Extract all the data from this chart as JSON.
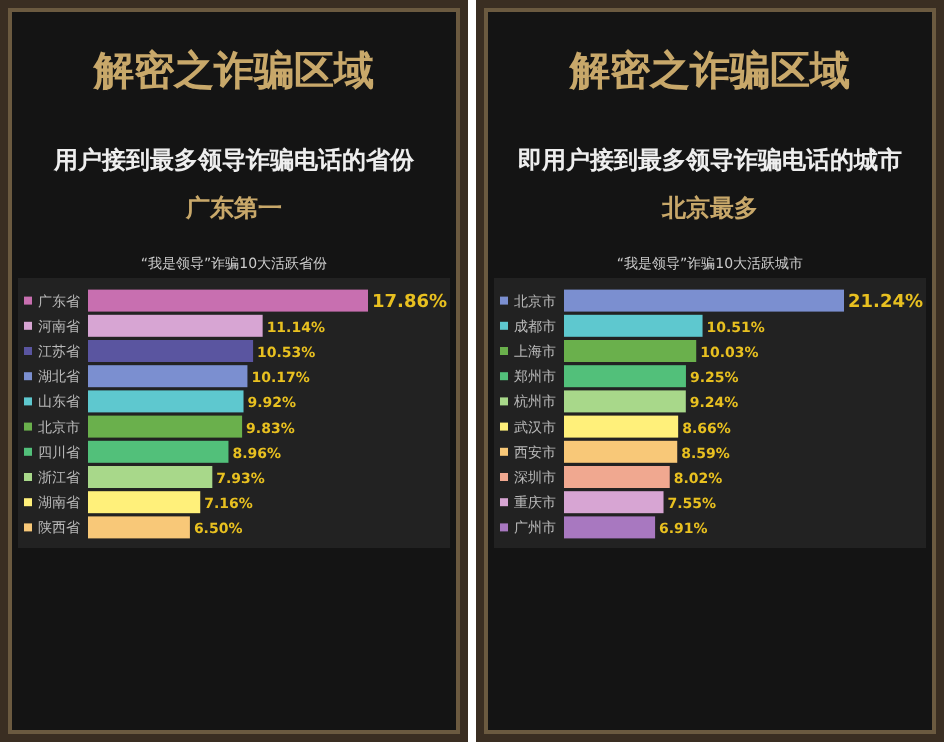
{
  "chart_data": [
    {
      "type": "bar",
      "orientation": "horizontal",
      "tick_labels": "y",
      "title": "解密之诈骗区域",
      "subtitle": "用户接到最多领导诈骗电话的省份",
      "value_labels": [
        "17.86%",
        "11.14%",
        "10.53%",
        "10.17%",
        "9.92%",
        "9.83%",
        "8.96%",
        "7.93%",
        "7.16%",
        "6.50%"
      ],
      "annotations": [
        "广东第一",
        "“我是领导”诈骗10大活跃省份"
      ],
      "categories": [
        "广东省",
        "河南省",
        "江苏省",
        "湖北省",
        "山东省",
        "北京市",
        "四川省",
        "浙江省",
        "湖南省",
        "陕西省"
      ],
      "values": [
        17.86,
        11.14,
        10.53,
        10.17,
        9.92,
        9.83,
        8.96,
        7.93,
        7.16,
        6.5
      ],
      "colors": [
        "#c86fb0",
        "#d7a5d3",
        "#5a55a0",
        "#7b8fd0",
        "#5ec8cf",
        "#6ab04c",
        "#52c07a",
        "#a8d88a",
        "#fff07a",
        "#f8c878"
      ]
    },
    {
      "type": "bar",
      "orientation": "horizontal",
      "tick_labels": "y",
      "title": "解密之诈骗区域",
      "subtitle": "即用户接到最多领导诈骗电话的城市",
      "value_labels": [
        "21.24%",
        "10.51%",
        "10.03%",
        "9.25%",
        "9.24%",
        "8.66%",
        "8.59%",
        "8.02%",
        "7.55%",
        "6.91%"
      ],
      "annotations": [
        "北京最多",
        "“我是领导”诈骗10大活跃城市"
      ],
      "categories": [
        "北京市",
        "成都市",
        "上海市",
        "郑州市",
        "杭州市",
        "武汉市",
        "西安市",
        "深圳市",
        "重庆市",
        "广州市"
      ],
      "values": [
        21.24,
        10.51,
        10.03,
        9.25,
        9.24,
        8.66,
        8.59,
        8.02,
        7.55,
        6.91
      ],
      "colors": [
        "#7b8fd0",
        "#5ec8cf",
        "#6ab04c",
        "#52c07a",
        "#a8d88a",
        "#fff07a",
        "#f8c878",
        "#f0a890",
        "#d7a5d3",
        "#a878c0"
      ]
    }
  ]
}
